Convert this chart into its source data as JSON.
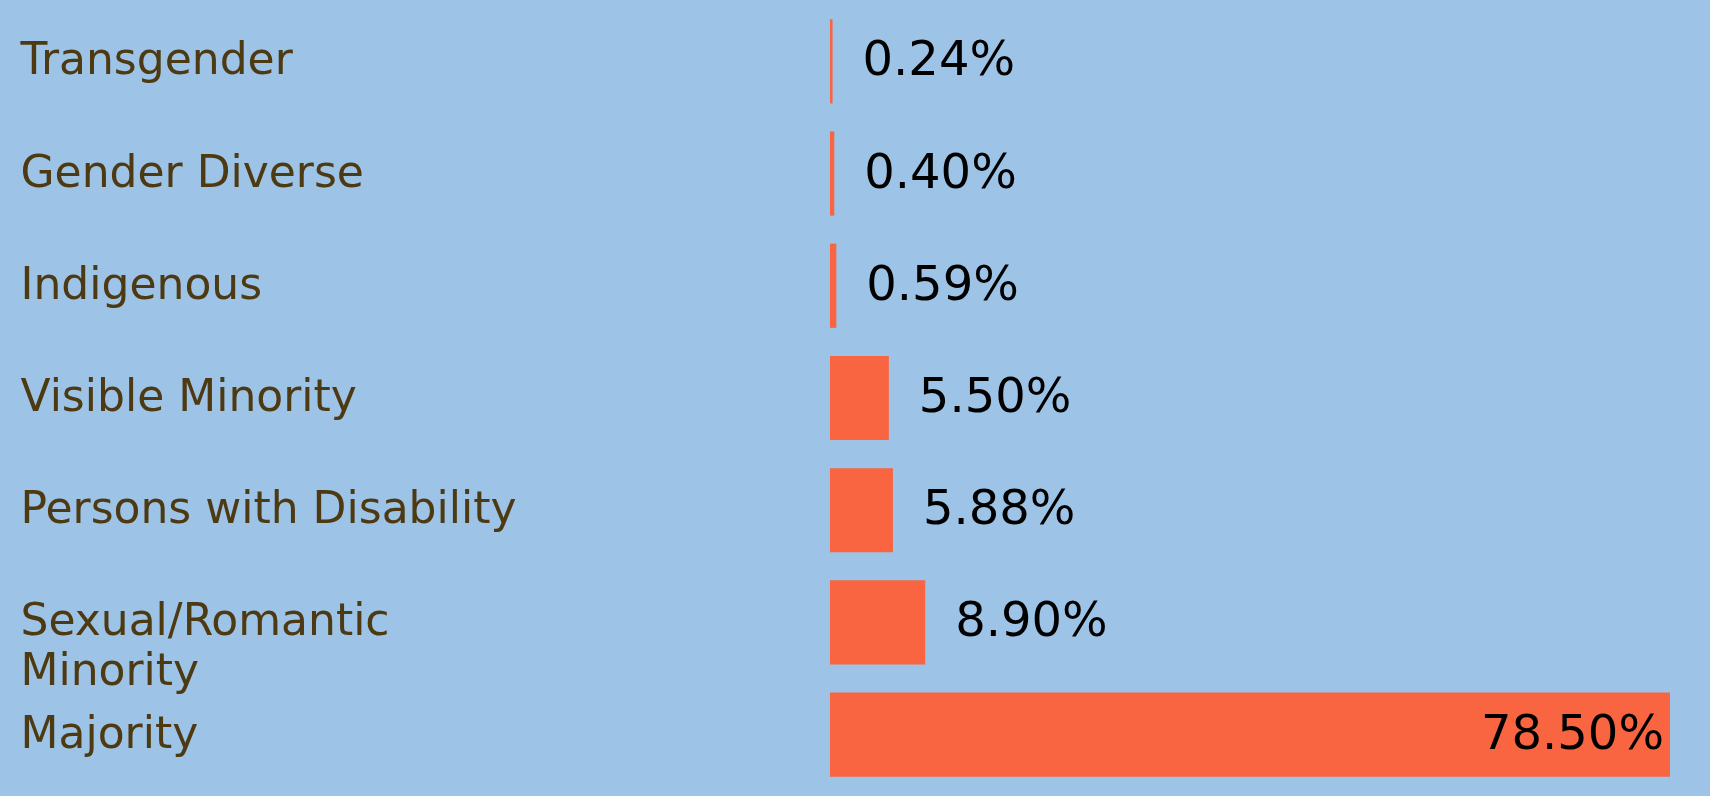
{
  "chart_data": {
    "type": "bar",
    "orientation": "horizontal",
    "categories": [
      "Transgender",
      "Gender Diverse",
      "Indigenous",
      "Visible Minority",
      "Persons with Disability",
      "Sexual/Romantic Minority",
      "Majority"
    ],
    "values": [
      0.24,
      0.4,
      0.59,
      5.5,
      5.88,
      8.9,
      78.5
    ],
    "value_labels": [
      "0.24%",
      "0.40%",
      "0.59%",
      "5.50%",
      "5.88%",
      "8.90%",
      "78.50%"
    ],
    "color": "#f96540",
    "grid": false
  }
}
